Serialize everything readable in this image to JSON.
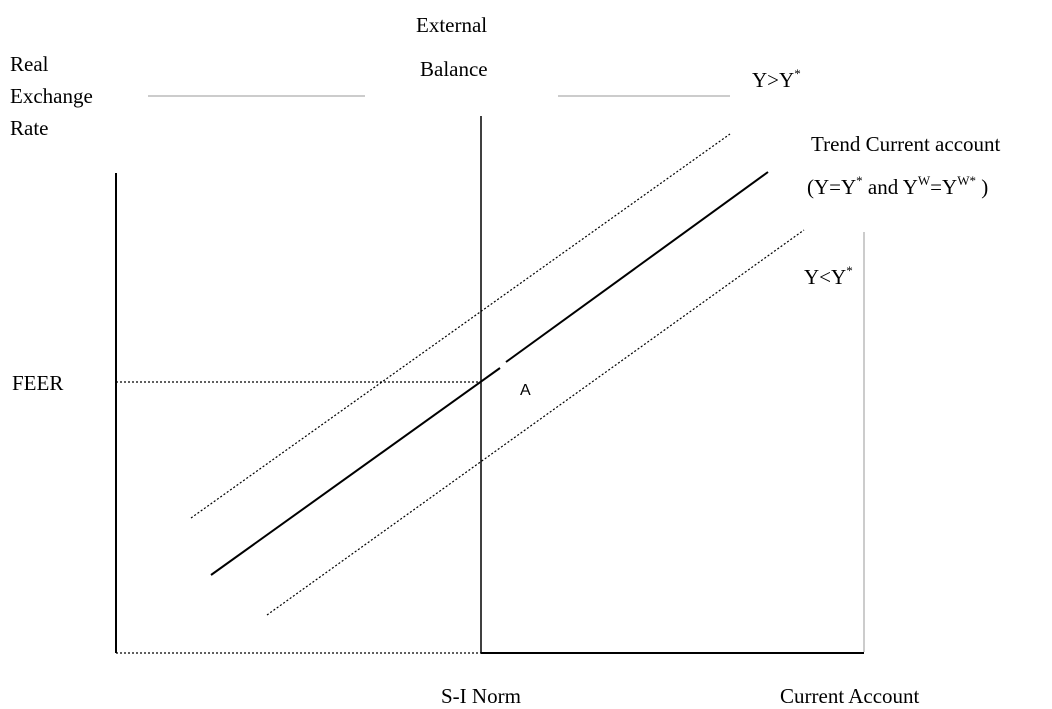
{
  "labels": {
    "y_axis": [
      "Real",
      "Exchange",
      "Rate"
    ],
    "external_balance": [
      "External",
      "Balance"
    ],
    "feer": "FEER",
    "point_a": "A",
    "x_axis": "Current Account",
    "si_norm": "S-I Norm",
    "upper_curve": {
      "base": "Y>Y",
      "sup": "*"
    },
    "lower_curve": {
      "base": "Y<Y",
      "sup": "*"
    },
    "trend": {
      "line1": "Trend Current account",
      "open": "(Y=Y",
      "sup1": "*",
      "mid": " and Y",
      "sup2": "W",
      "eq": "=Y",
      "sup3": "W*",
      "close": " )"
    }
  },
  "colors": {
    "ink": "#000000",
    "faint": "#cccccc"
  }
}
